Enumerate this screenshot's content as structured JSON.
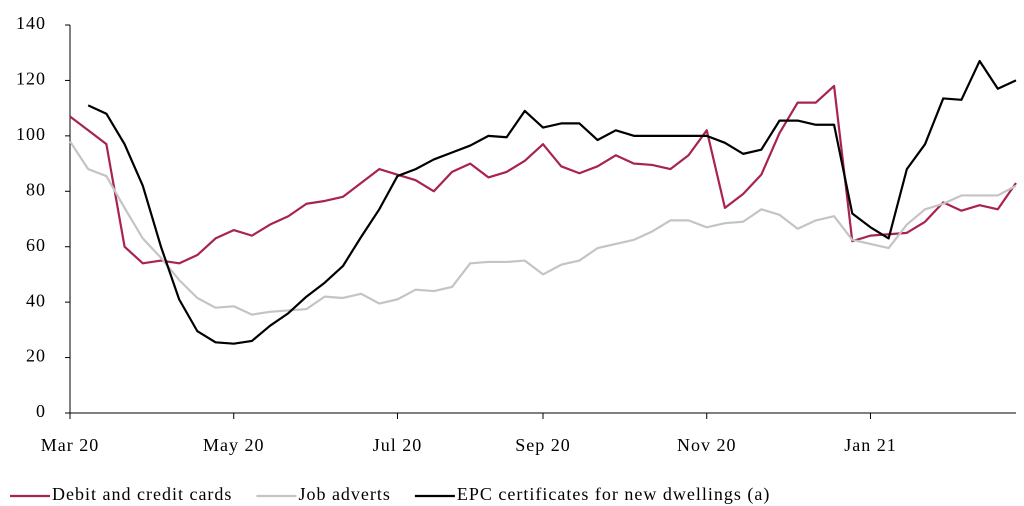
{
  "chart_data": {
    "type": "line",
    "categories": [
      "Mar 20",
      null,
      null,
      null,
      null,
      null,
      null,
      null,
      null,
      "May 20",
      null,
      null,
      null,
      null,
      null,
      null,
      null,
      null,
      "Jul 20",
      null,
      null,
      null,
      null,
      null,
      null,
      null,
      "Sep 20",
      null,
      null,
      null,
      null,
      null,
      null,
      null,
      null,
      "Nov 20",
      null,
      null,
      null,
      null,
      null,
      null,
      null,
      null,
      "Jan 21",
      null,
      null,
      null,
      null,
      null,
      null,
      null,
      null
    ],
    "series": [
      {
        "name": "Debit and credit cards",
        "color": "#a8234f",
        "values": [
          107,
          102,
          97,
          60,
          54,
          55,
          54,
          57,
          63,
          66,
          64,
          68,
          71,
          75.5,
          76.5,
          78,
          83,
          88,
          86,
          84,
          80,
          87,
          90,
          85,
          87,
          91,
          97,
          89,
          86.5,
          89,
          93,
          90,
          89.5,
          88,
          93,
          102,
          74,
          79,
          86,
          101,
          112,
          112,
          118,
          62,
          64,
          64.5,
          65,
          69,
          76,
          73,
          75,
          73.5,
          83
        ]
      },
      {
        "name": "Job adverts",
        "color": "#c4c4c4",
        "values": [
          98,
          88,
          85.5,
          74,
          63,
          56,
          48,
          41.5,
          38,
          38.5,
          35.5,
          36.5,
          37,
          37.5,
          42,
          41.5,
          43,
          39.5,
          41,
          44.5,
          44,
          45.5,
          54,
          54.5,
          54.5,
          55,
          50,
          53.5,
          55,
          59.5,
          61,
          62.5,
          65.5,
          69.5,
          69.5,
          67,
          68.5,
          69,
          73.5,
          71.5,
          66.5,
          69.5,
          71,
          62.5,
          61,
          59.5,
          68,
          73.5,
          75.5,
          78.5,
          78.5,
          78.5,
          82
        ]
      },
      {
        "name": "EPC certificates for new dwellings (a)",
        "color": "#000000",
        "values": [
          null,
          111,
          108,
          97,
          82,
          60,
          41,
          29.5,
          25.5,
          25,
          26,
          31.5,
          36,
          42,
          47,
          53,
          63.5,
          73.5,
          85.5,
          88,
          91.5,
          94,
          96.5,
          100,
          99.5,
          109,
          103,
          104.5,
          104.5,
          98.5,
          102,
          100,
          100,
          100,
          100,
          100,
          97.5,
          93.5,
          95,
          105.5,
          105.5,
          104,
          104,
          72,
          67,
          63,
          88,
          97,
          113.5,
          113,
          127,
          117,
          120
        ]
      }
    ],
    "ylim": [
      0,
      140
    ],
    "yticks": [
      0,
      20,
      40,
      60,
      80,
      100,
      120,
      140
    ],
    "grid": false,
    "legend": "bottom"
  }
}
